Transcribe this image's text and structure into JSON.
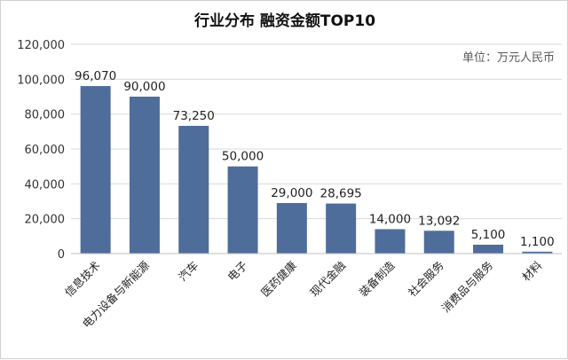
{
  "chart_data": {
    "type": "bar",
    "title": "行业分布 融资金额TOP10",
    "unit": "单位：万元人民币",
    "categories": [
      "信息技术",
      "电力设备与新能源",
      "汽车",
      "电子",
      "医药健康",
      "现代金融",
      "装备制造",
      "社会服务",
      "消费品与服务",
      "材料"
    ],
    "values": [
      96070,
      90000,
      73250,
      50000,
      29000,
      28695,
      14000,
      13092,
      5100,
      1100
    ],
    "data_labels": [
      "96,070",
      "90,000",
      "73,250",
      "50,000",
      "29,000",
      "28,695",
      "14,000",
      "13,092",
      "5,100",
      "1,100"
    ],
    "yticks": [
      "0",
      "20,000",
      "40,000",
      "60,000",
      "80,000",
      "100,000",
      "120,000"
    ],
    "ylim": [
      0,
      120000
    ],
    "grid": true,
    "legend": "none",
    "bar_color": "#4f6d9a"
  }
}
